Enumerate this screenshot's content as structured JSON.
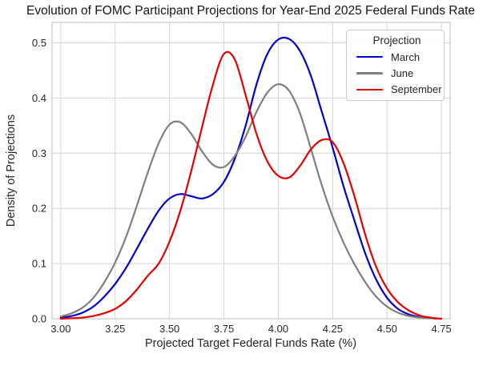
{
  "chart_data": {
    "type": "line",
    "title": "Evolution of FOMC Participant Projections for Year-End 2025 Federal Funds Rate",
    "xlabel": "Projected Target Federal Funds Rate (%)",
    "ylabel": "Density of Projections",
    "legend_title": "Projection",
    "legend_position": "upper right",
    "grid": true,
    "xlim": [
      2.96,
      4.79
    ],
    "ylim": [
      0,
      0.537
    ],
    "xticks": {
      "values": [
        3.0,
        3.25,
        3.5,
        3.75,
        4.0,
        4.25,
        4.5,
        4.75
      ],
      "labels": [
        "3.00",
        "3.25",
        "3.50",
        "3.75",
        "4.00",
        "4.25",
        "4.50",
        "4.75"
      ]
    },
    "yticks": {
      "values": [
        0.0,
        0.1,
        0.2,
        0.3,
        0.4,
        0.5
      ],
      "labels": [
        "0.0",
        "0.1",
        "0.2",
        "0.3",
        "0.4",
        "0.5"
      ]
    },
    "x": [
      3.0,
      3.05,
      3.1,
      3.15,
      3.2,
      3.25,
      3.3,
      3.35,
      3.4,
      3.45,
      3.5,
      3.55,
      3.6,
      3.65,
      3.7,
      3.75,
      3.8,
      3.85,
      3.9,
      3.95,
      4.0,
      4.05,
      4.1,
      4.15,
      4.2,
      4.25,
      4.3,
      4.35,
      4.4,
      4.45,
      4.5,
      4.55,
      4.6,
      4.65,
      4.7,
      4.75
    ],
    "series": [
      {
        "name": "March",
        "color": "#0000d0",
        "peak": {
          "x": 4.02,
          "density": 0.51
        },
        "values": [
          0.002,
          0.005,
          0.011,
          0.022,
          0.04,
          0.063,
          0.092,
          0.127,
          0.163,
          0.196,
          0.218,
          0.226,
          0.222,
          0.218,
          0.226,
          0.248,
          0.29,
          0.35,
          0.425,
          0.48,
          0.506,
          0.507,
          0.485,
          0.44,
          0.375,
          0.31,
          0.24,
          0.178,
          0.118,
          0.071,
          0.038,
          0.018,
          0.008,
          0.003,
          0.001,
          0.0
        ]
      },
      {
        "name": "June",
        "color": "#7f7f7f",
        "peak": {
          "x": 3.99,
          "density": 0.425
        },
        "values": [
          0.004,
          0.01,
          0.02,
          0.038,
          0.066,
          0.102,
          0.148,
          0.205,
          0.265,
          0.318,
          0.352,
          0.356,
          0.335,
          0.303,
          0.279,
          0.275,
          0.295,
          0.33,
          0.375,
          0.41,
          0.425,
          0.413,
          0.372,
          0.308,
          0.242,
          0.185,
          0.138,
          0.099,
          0.066,
          0.04,
          0.022,
          0.011,
          0.005,
          0.002,
          0.001,
          0.0
        ]
      },
      {
        "name": "September",
        "color": "#e60000",
        "peak": {
          "x": 3.76,
          "density": 0.483
        },
        "values": [
          0.0,
          0.001,
          0.002,
          0.005,
          0.01,
          0.018,
          0.032,
          0.053,
          0.078,
          0.1,
          0.14,
          0.196,
          0.268,
          0.348,
          0.425,
          0.48,
          0.47,
          0.405,
          0.335,
          0.285,
          0.259,
          0.256,
          0.277,
          0.307,
          0.324,
          0.32,
          0.282,
          0.222,
          0.152,
          0.094,
          0.055,
          0.03,
          0.015,
          0.006,
          0.002,
          0.0
        ]
      }
    ]
  }
}
